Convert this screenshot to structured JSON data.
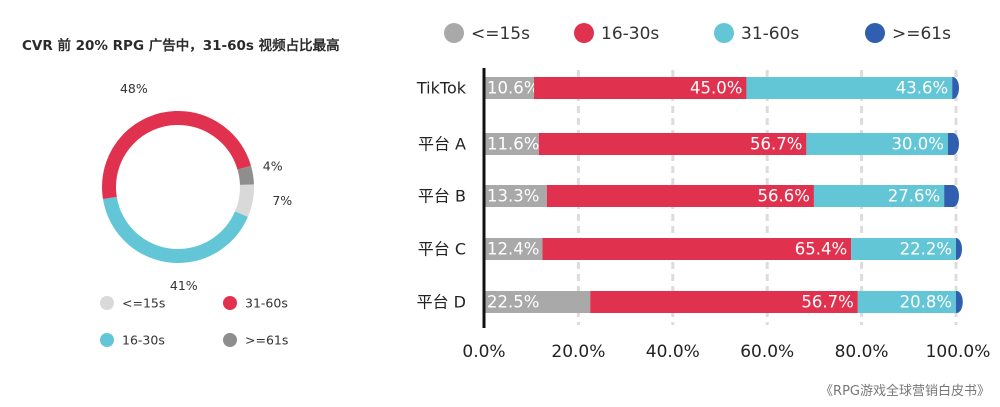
{
  "chart_data": [
    {
      "type": "pie",
      "variant": "donut",
      "title": "CVR 前 20% RPG 广告中，31-60s 视频占比最高",
      "slices": [
        {
          "label": "<=15s",
          "value": 7,
          "display": "7%",
          "color": "#d9d9d9"
        },
        {
          "label": "16-30s",
          "value": 41,
          "display": "41%",
          "color": "#63c6d6"
        },
        {
          "label": "31-60s",
          "value": 48,
          "display": "48%",
          "color": "#e0324e"
        },
        {
          "label": ">=61s",
          "value": 4,
          "display": "4%",
          "color": "#8e8e8e"
        }
      ],
      "legend": {
        "placement": "bottom",
        "items": [
          {
            "label": "<=15s",
            "color": "#d9d9d9"
          },
          {
            "label": "31-60s",
            "color": "#e0324e"
          },
          {
            "label": "16-30s",
            "color": "#63c6d6"
          },
          {
            "label": ">=61s",
            "color": "#8e8e8e"
          }
        ]
      }
    },
    {
      "type": "bar",
      "orientation": "horizontal",
      "stacked": true,
      "categories": [
        "TikTok",
        "平台 A",
        "平台 B",
        "平台 C",
        "平台 D"
      ],
      "series": [
        {
          "name": "<=15s",
          "color": "#a9a9a9",
          "values": [
            10.6,
            11.6,
            13.3,
            12.4,
            22.5
          ],
          "labels": [
            "10.6%",
            "11.6%",
            "13.3%",
            "12.4%",
            "22.5%"
          ]
        },
        {
          "name": "16-30s",
          "color": "#e0324e",
          "values": [
            45.0,
            56.7,
            56.6,
            65.4,
            56.7
          ],
          "labels": [
            "45.0%",
            "56.7%",
            "56.6%",
            "65.4%",
            "56.7%"
          ]
        },
        {
          "name": "31-60s",
          "color": "#63c6d6",
          "values": [
            43.6,
            30.0,
            27.6,
            22.2,
            20.8
          ],
          "labels": [
            "43.6%",
            "30.0%",
            "27.6%",
            "22.2%",
            "20.8%"
          ]
        },
        {
          "name": ">=61s",
          "color": "#2f5fae",
          "values": [
            0.8,
            1.7,
            2.5,
            0.5,
            0.8
          ],
          "labels": [
            "",
            "",
            "",
            "",
            ""
          ]
        }
      ],
      "xlim": [
        0,
        100
      ],
      "xticks": [
        "0.0%",
        "20.0%",
        "40.0%",
        "60.0%",
        "80.0%",
        "100.0%"
      ],
      "grid": "vertical-dashed",
      "legend": {
        "placement": "top"
      }
    }
  ],
  "source": "《RPG游戏全球营销白皮书》"
}
